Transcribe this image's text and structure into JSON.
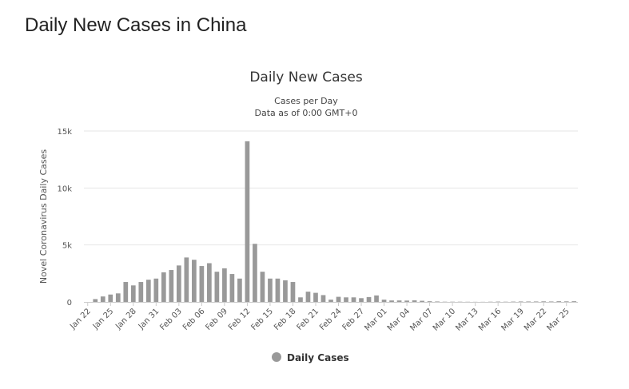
{
  "page": {
    "heading": "Daily New Cases in China"
  },
  "chart_data": {
    "type": "bar",
    "title": "Daily New Cases",
    "subtitle_lines": [
      "Cases per Day",
      "Data as of 0:00 GMT+0"
    ],
    "ylabel": "Novel Coronavirus Daily Cases",
    "xlabel": "",
    "ylim": [
      0,
      15000
    ],
    "yticks": [
      0,
      5000,
      10000,
      15000
    ],
    "ytick_labels": [
      "0",
      "5k",
      "10k",
      "15k"
    ],
    "grid": true,
    "legend_position": "bottom-center",
    "colors": {
      "bar": "#999999",
      "grid": "#e6e6e6",
      "axis": "#cccccc"
    },
    "categories": [
      "Jan 22",
      "Jan 23",
      "Jan 24",
      "Jan 25",
      "Jan 26",
      "Jan 27",
      "Jan 28",
      "Jan 29",
      "Jan 30",
      "Jan 31",
      "Feb 01",
      "Feb 02",
      "Feb 03",
      "Feb 04",
      "Feb 05",
      "Feb 06",
      "Feb 07",
      "Feb 08",
      "Feb 09",
      "Feb 10",
      "Feb 11",
      "Feb 12",
      "Feb 13",
      "Feb 14",
      "Feb 15",
      "Feb 16",
      "Feb 17",
      "Feb 18",
      "Feb 19",
      "Feb 20",
      "Feb 21",
      "Feb 22",
      "Feb 23",
      "Feb 24",
      "Feb 25",
      "Feb 26",
      "Feb 27",
      "Feb 28",
      "Feb 29",
      "Mar 01",
      "Mar 02",
      "Mar 03",
      "Mar 04",
      "Mar 05",
      "Mar 06",
      "Mar 07",
      "Mar 08",
      "Mar 09",
      "Mar 10",
      "Mar 11",
      "Mar 12",
      "Mar 13",
      "Mar 14",
      "Mar 15",
      "Mar 16",
      "Mar 17",
      "Mar 18",
      "Mar 19",
      "Mar 20",
      "Mar 21",
      "Mar 22",
      "Mar 23",
      "Mar 24",
      "Mar 25",
      "Mar 26"
    ],
    "xtick_labels": [
      "Jan 22",
      "Jan 25",
      "Jan 28",
      "Jan 31",
      "Feb 03",
      "Feb 06",
      "Feb 09",
      "Feb 12",
      "Feb 15",
      "Feb 18",
      "Feb 21",
      "Feb 24",
      "Feb 27",
      "Mar 01",
      "Mar 04",
      "Mar 07",
      "Mar 10",
      "Mar 13",
      "Mar 16",
      "Mar 19",
      "Mar 22",
      "Mar 25"
    ],
    "series": [
      {
        "name": "Daily Cases",
        "values": [
          0,
          250,
          480,
          650,
          750,
          1750,
          1450,
          1750,
          1950,
          2050,
          2600,
          2800,
          3200,
          3900,
          3700,
          3150,
          3400,
          2650,
          2950,
          2450,
          2050,
          14100,
          5100,
          2650,
          2050,
          2050,
          1900,
          1750,
          400,
          900,
          800,
          600,
          200,
          450,
          400,
          400,
          330,
          430,
          570,
          200,
          130,
          130,
          120,
          140,
          100,
          60,
          40,
          20,
          20,
          20,
          15,
          10,
          10,
          20,
          30,
          20,
          30,
          40,
          40,
          40,
          50,
          40,
          60,
          50,
          60
        ]
      }
    ]
  }
}
